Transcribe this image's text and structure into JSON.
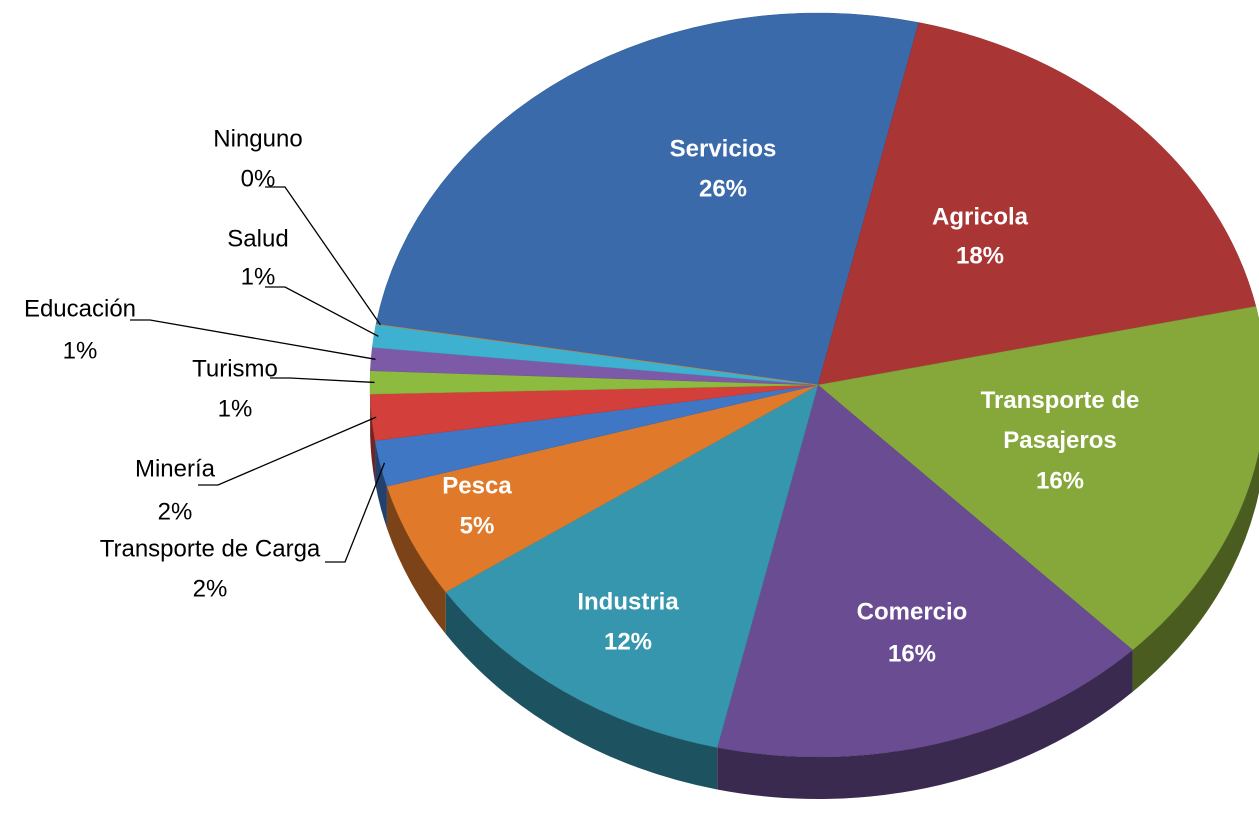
{
  "chart_data": {
    "type": "pie",
    "categories": [
      "Servicios",
      "Agricola",
      "Transporte de Pasajeros",
      "Comercio",
      "Industria",
      "Pesca",
      "Transporte de Carga",
      "Minería",
      "Turismo",
      "Educación",
      "Salud",
      "Ninguno"
    ],
    "values": [
      26,
      18,
      16,
      16,
      12,
      5,
      2,
      2,
      1,
      1,
      1,
      0
    ],
    "value_labels": [
      "26%",
      "18%",
      "16%",
      "16%",
      "12%",
      "5%",
      "2%",
      "2%",
      "1%",
      "1%",
      "1%",
      "0%"
    ],
    "colors": [
      "#3a6aaa",
      "#a93535",
      "#86a83a",
      "#6a4c92",
      "#3596ae",
      "#e07a2a",
      "#3f77c4",
      "#d33f3a",
      "#8dbb40",
      "#7d5aa8",
      "#3fb1d0",
      "#ef8a30"
    ]
  }
}
